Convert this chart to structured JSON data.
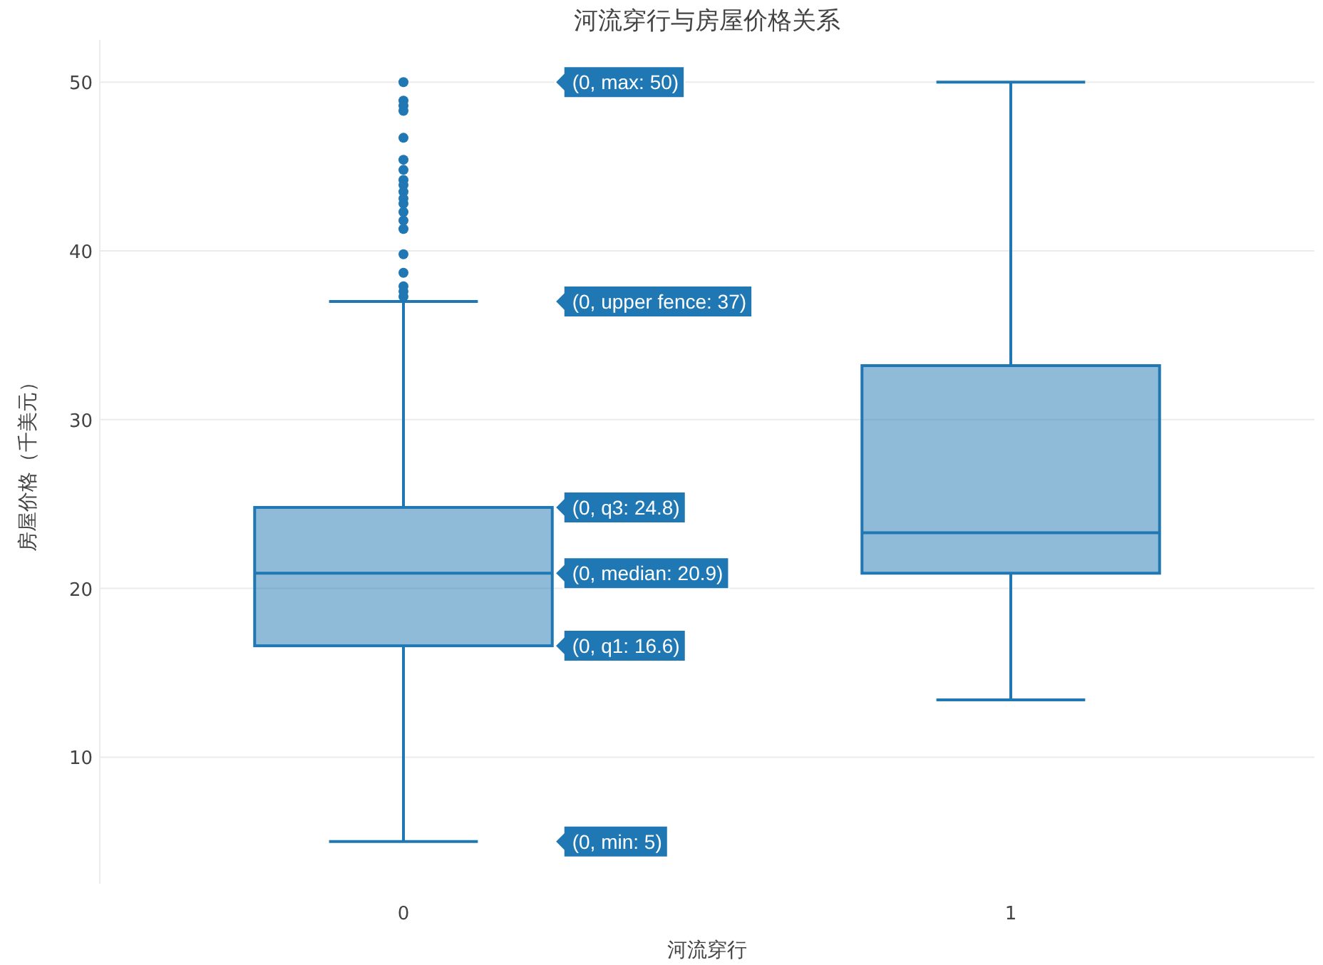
{
  "chart_data": {
    "type": "box",
    "title": "河流穿行与房屋价格关系",
    "xlabel": "河流穿行",
    "ylabel": "房屋价格（千美元）",
    "categories": [
      "0",
      "1"
    ],
    "color": "#1f77b4",
    "boxes": [
      {
        "low": 5,
        "q1": 16.6,
        "median": 20.9,
        "q3": 24.8,
        "high": 37,
        "outliers": [
          50,
          48.9,
          48.6,
          48.3,
          46.7,
          45.4,
          44.8,
          44.2,
          43.9,
          43.5,
          43.1,
          42.8,
          42.3,
          41.8,
          41.3,
          39.8,
          38.7,
          37.9,
          37.6,
          37.3
        ]
      },
      {
        "low": 13.4,
        "q1": 20.9,
        "median": 23.3,
        "q3": 33.2,
        "high": 50
      }
    ],
    "ylim": [
      2.5,
      52.5
    ],
    "yticks": [
      10,
      20,
      30,
      40,
      50
    ],
    "grid": "y",
    "marker": "circle",
    "annotations": [
      "(0, max: 50)",
      "(0, upper fence: 37)",
      "(0, q3: 24.8)",
      "(0, median: 20.9)",
      "(0, q1: 16.6)",
      "(0, min: 5)"
    ]
  }
}
